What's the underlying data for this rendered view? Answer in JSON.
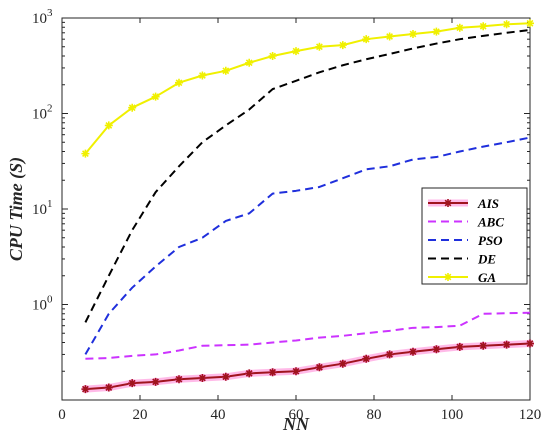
{
  "chart_data": {
    "type": "line",
    "xlabel": "NN",
    "ylabel": "CPU Time (S)",
    "xlim": [
      0,
      120
    ],
    "ylim": [
      0.1,
      1000
    ],
    "yscale": "log",
    "x_ticks": [
      "0",
      "20",
      "40",
      "60",
      "80",
      "100",
      "120"
    ],
    "y_ticks": [
      {
        "value": 1,
        "base": "10",
        "exp": "0"
      },
      {
        "value": 10,
        "base": "10",
        "exp": "1"
      },
      {
        "value": 100,
        "base": "10",
        "exp": "2"
      },
      {
        "value": 1000,
        "base": "10",
        "exp": "3"
      }
    ],
    "grid": false,
    "legend_position": "right",
    "series": [
      {
        "name": "AIS",
        "color": "#a0141e",
        "marker_color": "#ff66cc",
        "style": "solid-star",
        "x": [
          6,
          12,
          18,
          24,
          30,
          36,
          42,
          48,
          54,
          60,
          66,
          72,
          78,
          84,
          90,
          96,
          102,
          108,
          114,
          120
        ],
        "y": [
          0.13,
          0.135,
          0.15,
          0.155,
          0.165,
          0.17,
          0.175,
          0.19,
          0.195,
          0.2,
          0.22,
          0.24,
          0.27,
          0.3,
          0.32,
          0.34,
          0.36,
          0.37,
          0.38,
          0.39
        ]
      },
      {
        "name": "ABC",
        "color": "#cc33ff",
        "style": "dashed",
        "x": [
          6,
          12,
          18,
          24,
          30,
          36,
          42,
          48,
          54,
          60,
          66,
          72,
          78,
          84,
          90,
          96,
          102,
          108,
          114,
          120
        ],
        "y": [
          0.27,
          0.275,
          0.29,
          0.3,
          0.33,
          0.37,
          0.375,
          0.38,
          0.4,
          0.42,
          0.45,
          0.47,
          0.5,
          0.53,
          0.57,
          0.58,
          0.6,
          0.8,
          0.81,
          0.82
        ]
      },
      {
        "name": "PSO",
        "color": "#1f2fdc",
        "style": "dashed",
        "x": [
          6,
          12,
          18,
          24,
          30,
          36,
          42,
          48,
          54,
          60,
          66,
          72,
          78,
          84,
          90,
          96,
          102,
          108,
          114,
          120
        ],
        "y": [
          0.3,
          0.8,
          1.5,
          2.5,
          4,
          5,
          7.5,
          9,
          14.5,
          15.5,
          17,
          21,
          26,
          28,
          33,
          35,
          40,
          45,
          50,
          56
        ]
      },
      {
        "name": "DE",
        "color": "#000000",
        "style": "dashed",
        "x": [
          6,
          12,
          18,
          24,
          30,
          36,
          42,
          48,
          54,
          60,
          66,
          72,
          78,
          84,
          90,
          96,
          102,
          108,
          114,
          120
        ],
        "y": [
          0.65,
          2,
          6,
          15,
          28,
          50,
          75,
          110,
          180,
          220,
          270,
          320,
          370,
          420,
          480,
          540,
          600,
          650,
          700,
          750
        ]
      },
      {
        "name": "GA",
        "color": "#f0f000",
        "style": "solid-star",
        "x": [
          6,
          12,
          18,
          24,
          30,
          36,
          42,
          48,
          54,
          60,
          66,
          72,
          78,
          84,
          90,
          96,
          102,
          108,
          114,
          120
        ],
        "y": [
          38,
          75,
          115,
          150,
          210,
          250,
          280,
          340,
          400,
          450,
          500,
          520,
          600,
          640,
          680,
          720,
          790,
          820,
          860,
          880
        ]
      }
    ]
  }
}
